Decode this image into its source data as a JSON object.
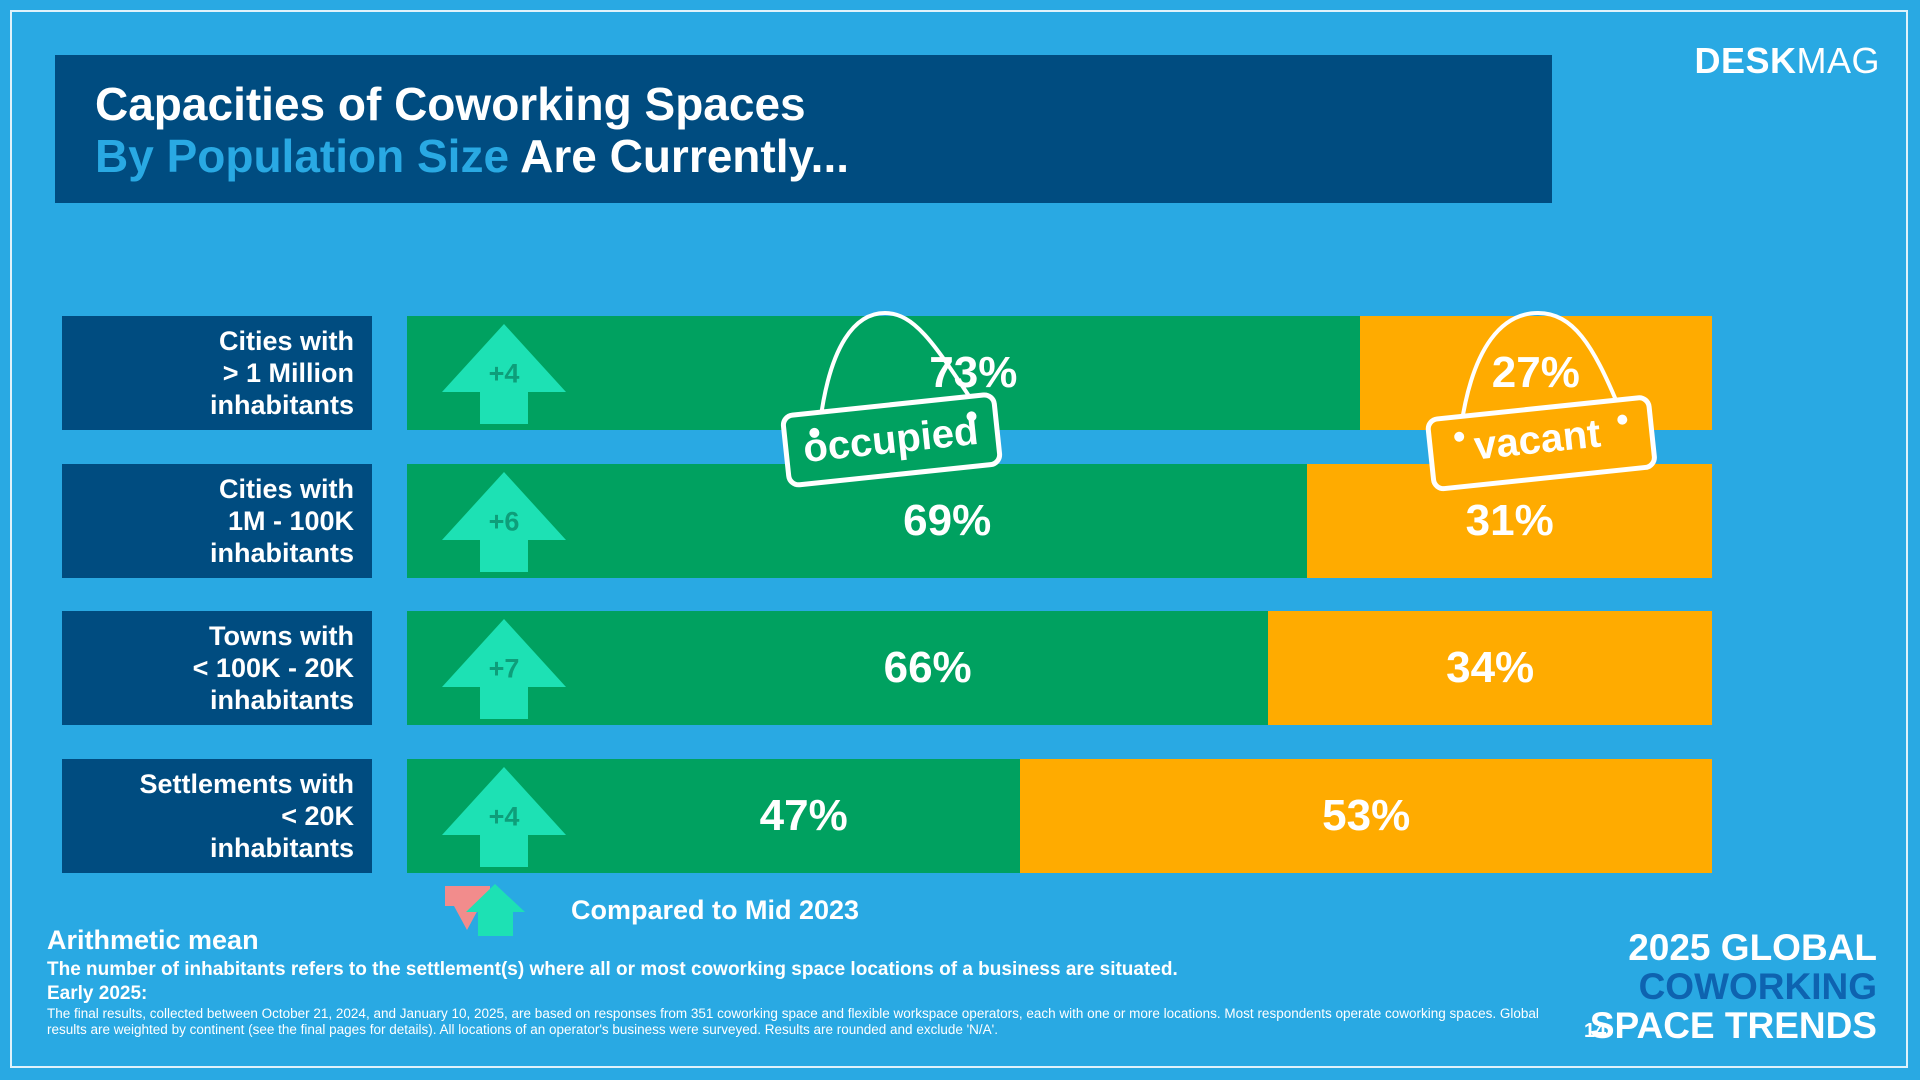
{
  "brand": {
    "bold": "DESK",
    "light": "MAG"
  },
  "title": {
    "line1": "Capacities of Coworking Spaces",
    "accent": "By Population Size",
    "rest": " Are Currently..."
  },
  "tags": {
    "occupied": "occupied",
    "vacant": "vacant"
  },
  "legend": {
    "label": "Compared to Mid 2023"
  },
  "colors": {
    "occupied": "#00A160",
    "vacant": "#FFAB00",
    "arrow_up": "#1DE1B4",
    "arrow_down": "#F28C8C",
    "label_bg": "#004C80",
    "background": "#29A9E3"
  },
  "chart_data": {
    "type": "bar",
    "stacked": true,
    "orientation": "horizontal",
    "categories": [
      "Cities with > 1 Million inhabitants",
      "Cities with 1M - 100K inhabitants",
      "Towns with < 100K - 20K inhabitants",
      "Settlements with < 20K inhabitants"
    ],
    "category_lines": [
      [
        "Cities with",
        "> 1 Million",
        "inhabitants"
      ],
      [
        "Cities with",
        "1M - 100K",
        "inhabitants"
      ],
      [
        "Towns with",
        "< 100K - 20K",
        "inhabitants"
      ],
      [
        "Settlements with",
        "< 20K",
        "inhabitants"
      ]
    ],
    "series": [
      {
        "name": "occupied",
        "values": [
          73,
          69,
          66,
          47
        ]
      },
      {
        "name": "vacant",
        "values": [
          27,
          31,
          34,
          53
        ]
      }
    ],
    "value_labels": {
      "occupied": [
        "73%",
        "69%",
        "66%",
        "47%"
      ],
      "vacant": [
        "27%",
        "31%",
        "34%",
        "53%"
      ]
    },
    "change_vs_mid_2023": [
      4,
      6,
      7,
      4
    ],
    "change_labels": [
      "+4",
      "+6",
      "+7",
      "+4"
    ],
    "xlim": [
      0,
      100
    ]
  },
  "footer": {
    "heading": "Arithmetic mean",
    "note": "The number of inhabitants refers to the settlement(s) where all or most coworking space locations of a business are situated.",
    "early": "Early 2025:",
    "small": "The final results, collected between October 21, 2024, and January 10, 2025, are based on responses from 351 coworking space and flexible workspace operators, each with one or more locations. Most respondents operate coworking spaces. Global results are weighted by continent (see the final pages for details). All locations of an operator's business were surveyed. Results are rounded and exclude 'N/A'."
  },
  "page_number": "14",
  "report": {
    "line1": "2025 GLOBAL",
    "line2": "COWORKING",
    "line3": "SPACE TRENDS"
  }
}
